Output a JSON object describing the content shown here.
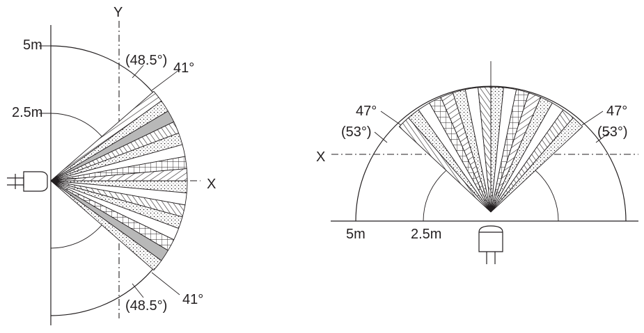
{
  "left_view": {
    "axis_y_label": "Y",
    "axis_x_label": "X",
    "radius_outer_label": "5m",
    "radius_inner_label": "2.5m",
    "angle_label_top": "41°",
    "angle_paren_top": "(48.5°)",
    "angle_label_bottom": "41°",
    "angle_paren_bottom": "(48.5°)"
  },
  "right_view": {
    "axis_x_label": "X",
    "radius_outer_label": "5m",
    "radius_inner_label": "2.5m",
    "angle_label_left": "47°",
    "angle_paren_left": "(53°)",
    "angle_label_right": "47°",
    "angle_paren_right": "(53°)"
  },
  "colors": {
    "ink": "#231f20",
    "gray_band": "#b8b8b8",
    "background": "#ffffff"
  }
}
